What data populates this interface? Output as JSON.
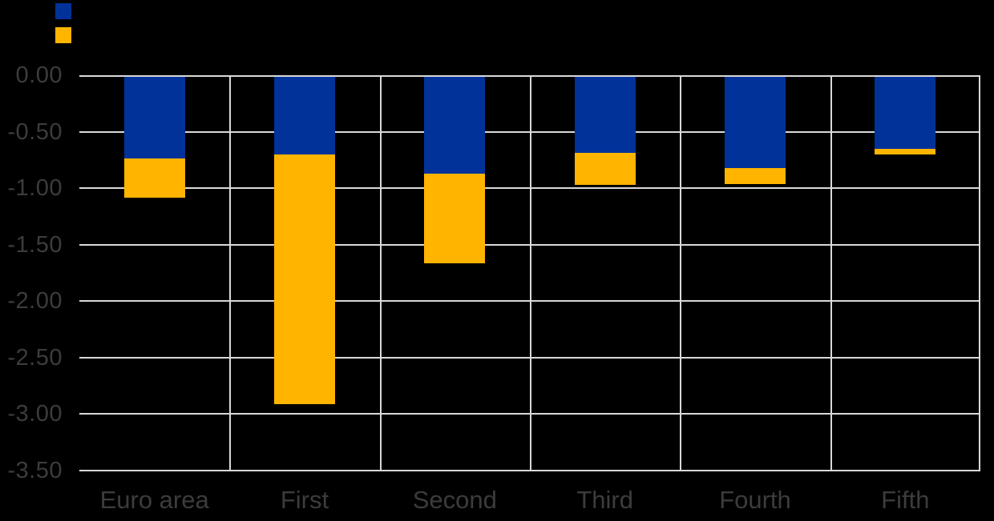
{
  "colors": {
    "background": "#000000",
    "gridline": "#d9d9d9",
    "axis_text": "#3c3c3c",
    "series_blue": "#003299",
    "series_yellow": "#ffb400"
  },
  "legend": {
    "position": "top-left",
    "items": [
      {
        "label": "",
        "color": "#003299",
        "name": "blue-series-swatch"
      },
      {
        "label": "",
        "color": "#ffb400",
        "name": "yellow-series-swatch"
      }
    ]
  },
  "chart_data": {
    "type": "bar",
    "stacked": true,
    "orientation": "vertical",
    "title": "",
    "xlabel": "",
    "ylabel": "",
    "categories": [
      "Euro area",
      "First",
      "Second",
      "Third",
      "Fourth",
      "Fifth"
    ],
    "series": [
      {
        "name": "series-1-blue",
        "color": "#003299",
        "values": [
          -0.72,
          -0.69,
          -0.86,
          -0.67,
          -0.81,
          -0.64
        ]
      },
      {
        "name": "series-2-yellow",
        "color": "#ffb400",
        "values": [
          -0.35,
          -2.21,
          -0.79,
          -0.29,
          -0.14,
          -0.05
        ]
      }
    ],
    "stack_totals": [
      -1.07,
      -2.9,
      -1.65,
      -0.96,
      -0.95,
      -0.69
    ],
    "y_ticks": [
      "0.00",
      "-0.50",
      "-1.00",
      "-1.50",
      "-2.00",
      "-2.50",
      "-3.00",
      "-3.50"
    ],
    "ylim": [
      -3.5,
      0
    ],
    "grid": true,
    "legend_position": "top-left"
  }
}
